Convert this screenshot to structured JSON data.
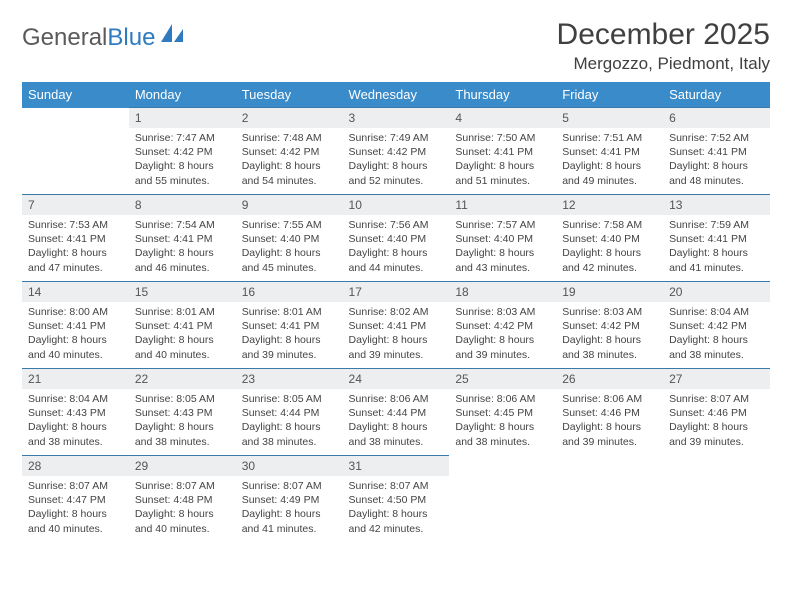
{
  "logo": {
    "text_a": "General",
    "text_b": "Blue"
  },
  "title": "December 2025",
  "location": "Mergozzo, Piedmont, Italy",
  "colors": {
    "header_bg": "#3a8bc9",
    "header_text": "#ffffff",
    "daynum_bg": "#eceef0",
    "border": "#3a7aa8",
    "logo_blue": "#2e7bbf"
  },
  "day_headers": [
    "Sunday",
    "Monday",
    "Tuesday",
    "Wednesday",
    "Thursday",
    "Friday",
    "Saturday"
  ],
  "weeks": [
    [
      null,
      {
        "n": "1",
        "sr": "7:47 AM",
        "ss": "4:42 PM",
        "dl": "8 hours and 55 minutes."
      },
      {
        "n": "2",
        "sr": "7:48 AM",
        "ss": "4:42 PM",
        "dl": "8 hours and 54 minutes."
      },
      {
        "n": "3",
        "sr": "7:49 AM",
        "ss": "4:42 PM",
        "dl": "8 hours and 52 minutes."
      },
      {
        "n": "4",
        "sr": "7:50 AM",
        "ss": "4:41 PM",
        "dl": "8 hours and 51 minutes."
      },
      {
        "n": "5",
        "sr": "7:51 AM",
        "ss": "4:41 PM",
        "dl": "8 hours and 49 minutes."
      },
      {
        "n": "6",
        "sr": "7:52 AM",
        "ss": "4:41 PM",
        "dl": "8 hours and 48 minutes."
      }
    ],
    [
      {
        "n": "7",
        "sr": "7:53 AM",
        "ss": "4:41 PM",
        "dl": "8 hours and 47 minutes."
      },
      {
        "n": "8",
        "sr": "7:54 AM",
        "ss": "4:41 PM",
        "dl": "8 hours and 46 minutes."
      },
      {
        "n": "9",
        "sr": "7:55 AM",
        "ss": "4:40 PM",
        "dl": "8 hours and 45 minutes."
      },
      {
        "n": "10",
        "sr": "7:56 AM",
        "ss": "4:40 PM",
        "dl": "8 hours and 44 minutes."
      },
      {
        "n": "11",
        "sr": "7:57 AM",
        "ss": "4:40 PM",
        "dl": "8 hours and 43 minutes."
      },
      {
        "n": "12",
        "sr": "7:58 AM",
        "ss": "4:40 PM",
        "dl": "8 hours and 42 minutes."
      },
      {
        "n": "13",
        "sr": "7:59 AM",
        "ss": "4:41 PM",
        "dl": "8 hours and 41 minutes."
      }
    ],
    [
      {
        "n": "14",
        "sr": "8:00 AM",
        "ss": "4:41 PM",
        "dl": "8 hours and 40 minutes."
      },
      {
        "n": "15",
        "sr": "8:01 AM",
        "ss": "4:41 PM",
        "dl": "8 hours and 40 minutes."
      },
      {
        "n": "16",
        "sr": "8:01 AM",
        "ss": "4:41 PM",
        "dl": "8 hours and 39 minutes."
      },
      {
        "n": "17",
        "sr": "8:02 AM",
        "ss": "4:41 PM",
        "dl": "8 hours and 39 minutes."
      },
      {
        "n": "18",
        "sr": "8:03 AM",
        "ss": "4:42 PM",
        "dl": "8 hours and 39 minutes."
      },
      {
        "n": "19",
        "sr": "8:03 AM",
        "ss": "4:42 PM",
        "dl": "8 hours and 38 minutes."
      },
      {
        "n": "20",
        "sr": "8:04 AM",
        "ss": "4:42 PM",
        "dl": "8 hours and 38 minutes."
      }
    ],
    [
      {
        "n": "21",
        "sr": "8:04 AM",
        "ss": "4:43 PM",
        "dl": "8 hours and 38 minutes."
      },
      {
        "n": "22",
        "sr": "8:05 AM",
        "ss": "4:43 PM",
        "dl": "8 hours and 38 minutes."
      },
      {
        "n": "23",
        "sr": "8:05 AM",
        "ss": "4:44 PM",
        "dl": "8 hours and 38 minutes."
      },
      {
        "n": "24",
        "sr": "8:06 AM",
        "ss": "4:44 PM",
        "dl": "8 hours and 38 minutes."
      },
      {
        "n": "25",
        "sr": "8:06 AM",
        "ss": "4:45 PM",
        "dl": "8 hours and 38 minutes."
      },
      {
        "n": "26",
        "sr": "8:06 AM",
        "ss": "4:46 PM",
        "dl": "8 hours and 39 minutes."
      },
      {
        "n": "27",
        "sr": "8:07 AM",
        "ss": "4:46 PM",
        "dl": "8 hours and 39 minutes."
      }
    ],
    [
      {
        "n": "28",
        "sr": "8:07 AM",
        "ss": "4:47 PM",
        "dl": "8 hours and 40 minutes."
      },
      {
        "n": "29",
        "sr": "8:07 AM",
        "ss": "4:48 PM",
        "dl": "8 hours and 40 minutes."
      },
      {
        "n": "30",
        "sr": "8:07 AM",
        "ss": "4:49 PM",
        "dl": "8 hours and 41 minutes."
      },
      {
        "n": "31",
        "sr": "8:07 AM",
        "ss": "4:50 PM",
        "dl": "8 hours and 42 minutes."
      },
      null,
      null,
      null
    ]
  ],
  "labels": {
    "sunrise": "Sunrise: ",
    "sunset": "Sunset: ",
    "daylight": "Daylight: "
  }
}
